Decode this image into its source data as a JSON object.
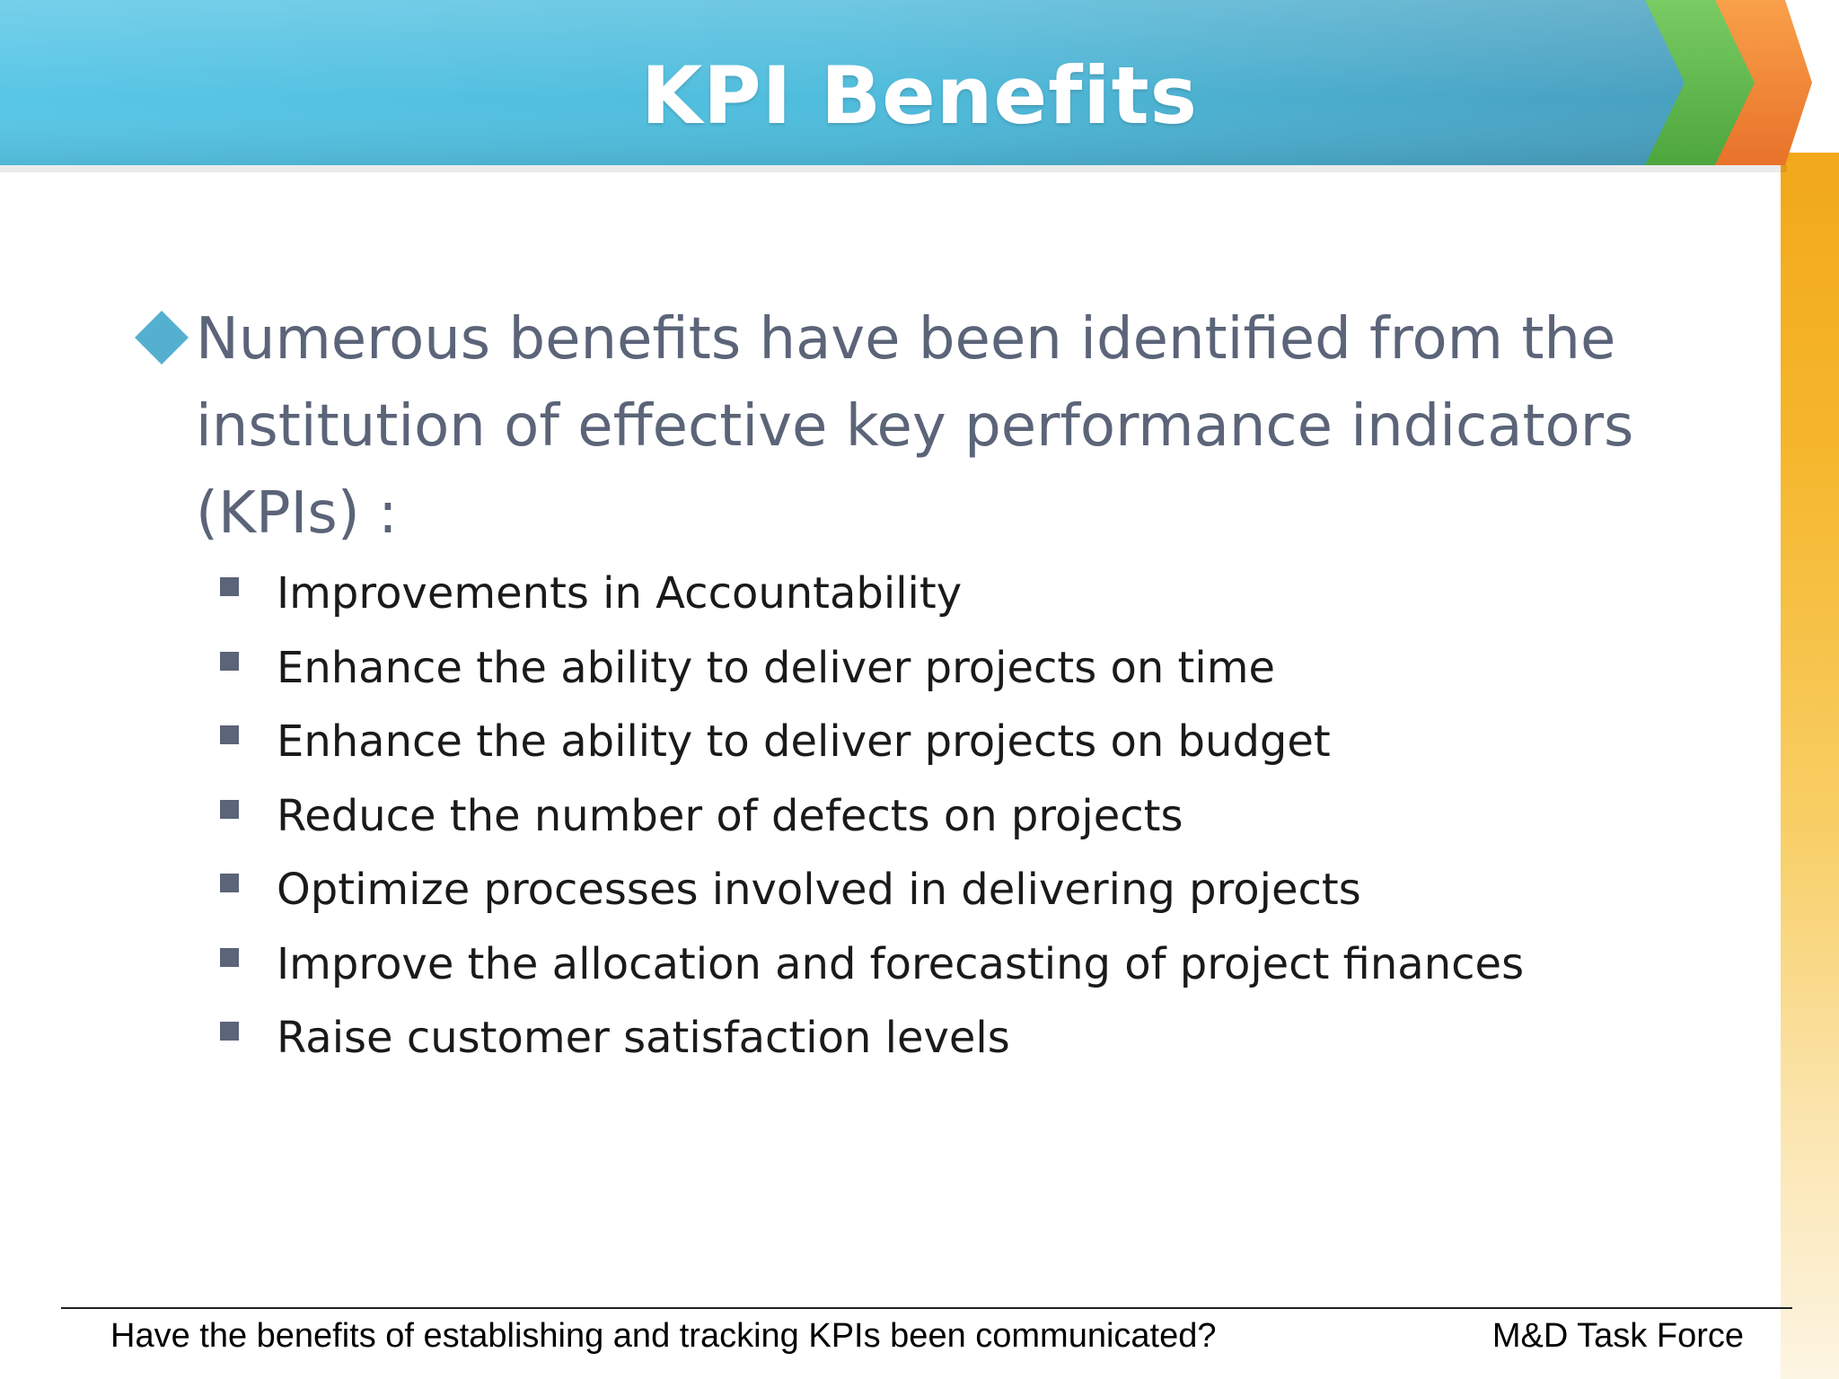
{
  "slide": {
    "title": "KPI Benefits",
    "main_bullet": "Numerous benefits have been identified from the institution of effective key performance indicators (KPIs) :",
    "sub_bullets": [
      "Improvements in Accountability",
      "Enhance the ability to deliver projects on time",
      "Enhance the ability to deliver projects on budget",
      "Reduce the number of defects on projects",
      "Optimize processes involved in delivering projects",
      "Improve the allocation and forecasting of project finances",
      "Raise customer satisfaction levels"
    ]
  },
  "footer": {
    "left_text": "Have the benefits of establishing and tracking KPIs been communicated?",
    "right_text": "M&D Task Force"
  },
  "colors": {
    "banner_blue": "#4fb8d8",
    "arrow_green": "#5cb84a",
    "arrow_orange": "#f07f35",
    "strip_gold": "#f2a81a",
    "diamond_blue": "#55b0d0",
    "main_text": "#5b6478"
  },
  "icons": {
    "main_bullet_marker": "diamond-icon",
    "sub_bullet_marker": "square-bullet-icon"
  }
}
